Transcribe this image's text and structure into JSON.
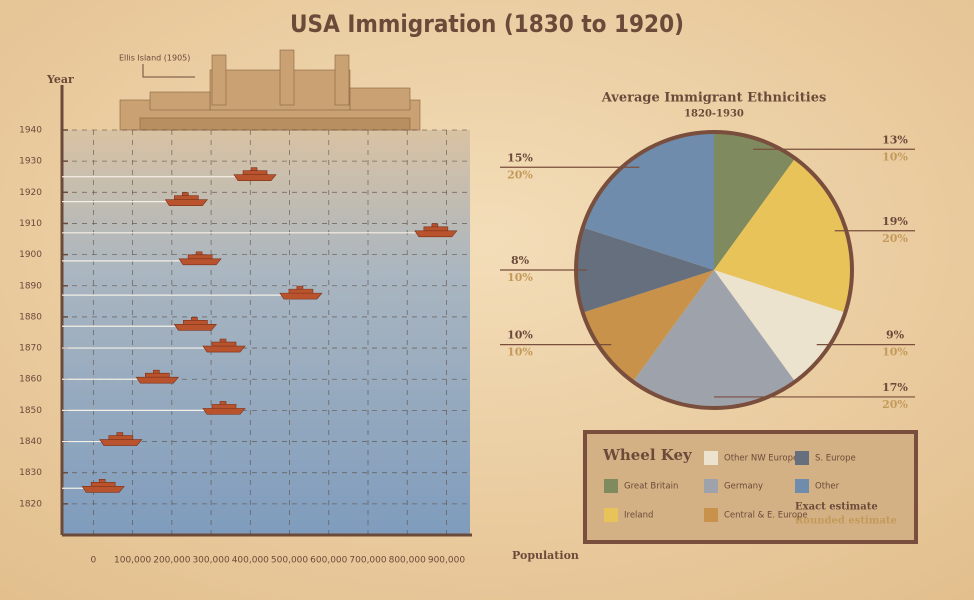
{
  "chart_data": [
    {
      "type": "scatter",
      "title": "USA Immigration (1830 to 1920)",
      "annotation": "Ellis Island (1905)",
      "x_label": "Population",
      "y_label": "Year",
      "x": [
        25000,
        70000,
        333000,
        163000,
        333000,
        260000,
        529000,
        272000,
        873000,
        237000,
        412000
      ],
      "y": [
        1825,
        1840,
        1850,
        1860,
        1870,
        1877,
        1887,
        1898,
        1907,
        1917,
        1925
      ],
      "color": "#b8532e",
      "xlim": [
        -80000,
        960000
      ],
      "xticks": [
        0,
        {
          "value": 100000,
          "label": "100,000"
        },
        {
          "value": 200000,
          "label": "200,000"
        },
        {
          "value": 300000,
          "label": "300,000"
        },
        {
          "value": 400000,
          "label": "400,000"
        },
        {
          "value": 500000,
          "label": "500,000"
        },
        {
          "value": 600000,
          "label": "600,000"
        },
        {
          "value": 700000,
          "label": "700,000"
        },
        {
          "value": 800000,
          "label": "800,000"
        },
        {
          "value": 900000,
          "label": "900,000"
        }
      ],
      "ylim": [
        1810,
        1940
      ],
      "yticks": [
        1820,
        1830,
        1840,
        1850,
        1860,
        1870,
        1880,
        1890,
        1900,
        1910,
        1920,
        1930,
        1940
      ],
      "grid": true
    },
    {
      "type": "pie",
      "title": "Average Immigrant Ethnicities",
      "subtitle": "1820-1930",
      "categories": [
        "Great Britain",
        "Ireland",
        "Other NW Europe",
        "Germany",
        "Central & E. Europe",
        "S. Europe",
        "Other"
      ],
      "colors": [
        "#7f8a5e",
        "#e8c35a",
        "#ece3cf",
        "#9ea3ab",
        "#c8924a",
        "#666f7d",
        "#6f8cad"
      ],
      "values": [
        10,
        20,
        10,
        20,
        10,
        10,
        20
      ],
      "value_labels": [
        "10%",
        "20%",
        "10%",
        "20%",
        "10%",
        "10%",
        "20%"
      ],
      "exact_values": [
        13,
        19,
        9,
        17,
        10,
        8,
        15
      ],
      "exact_value_labels": [
        "13%",
        "19%",
        "9%",
        "17%",
        "10%",
        "8%",
        "15%"
      ],
      "legend_title": "Wheel Key",
      "exact_label": "Exact estimate",
      "rounded_label": "Rounded estimate"
    }
  ]
}
